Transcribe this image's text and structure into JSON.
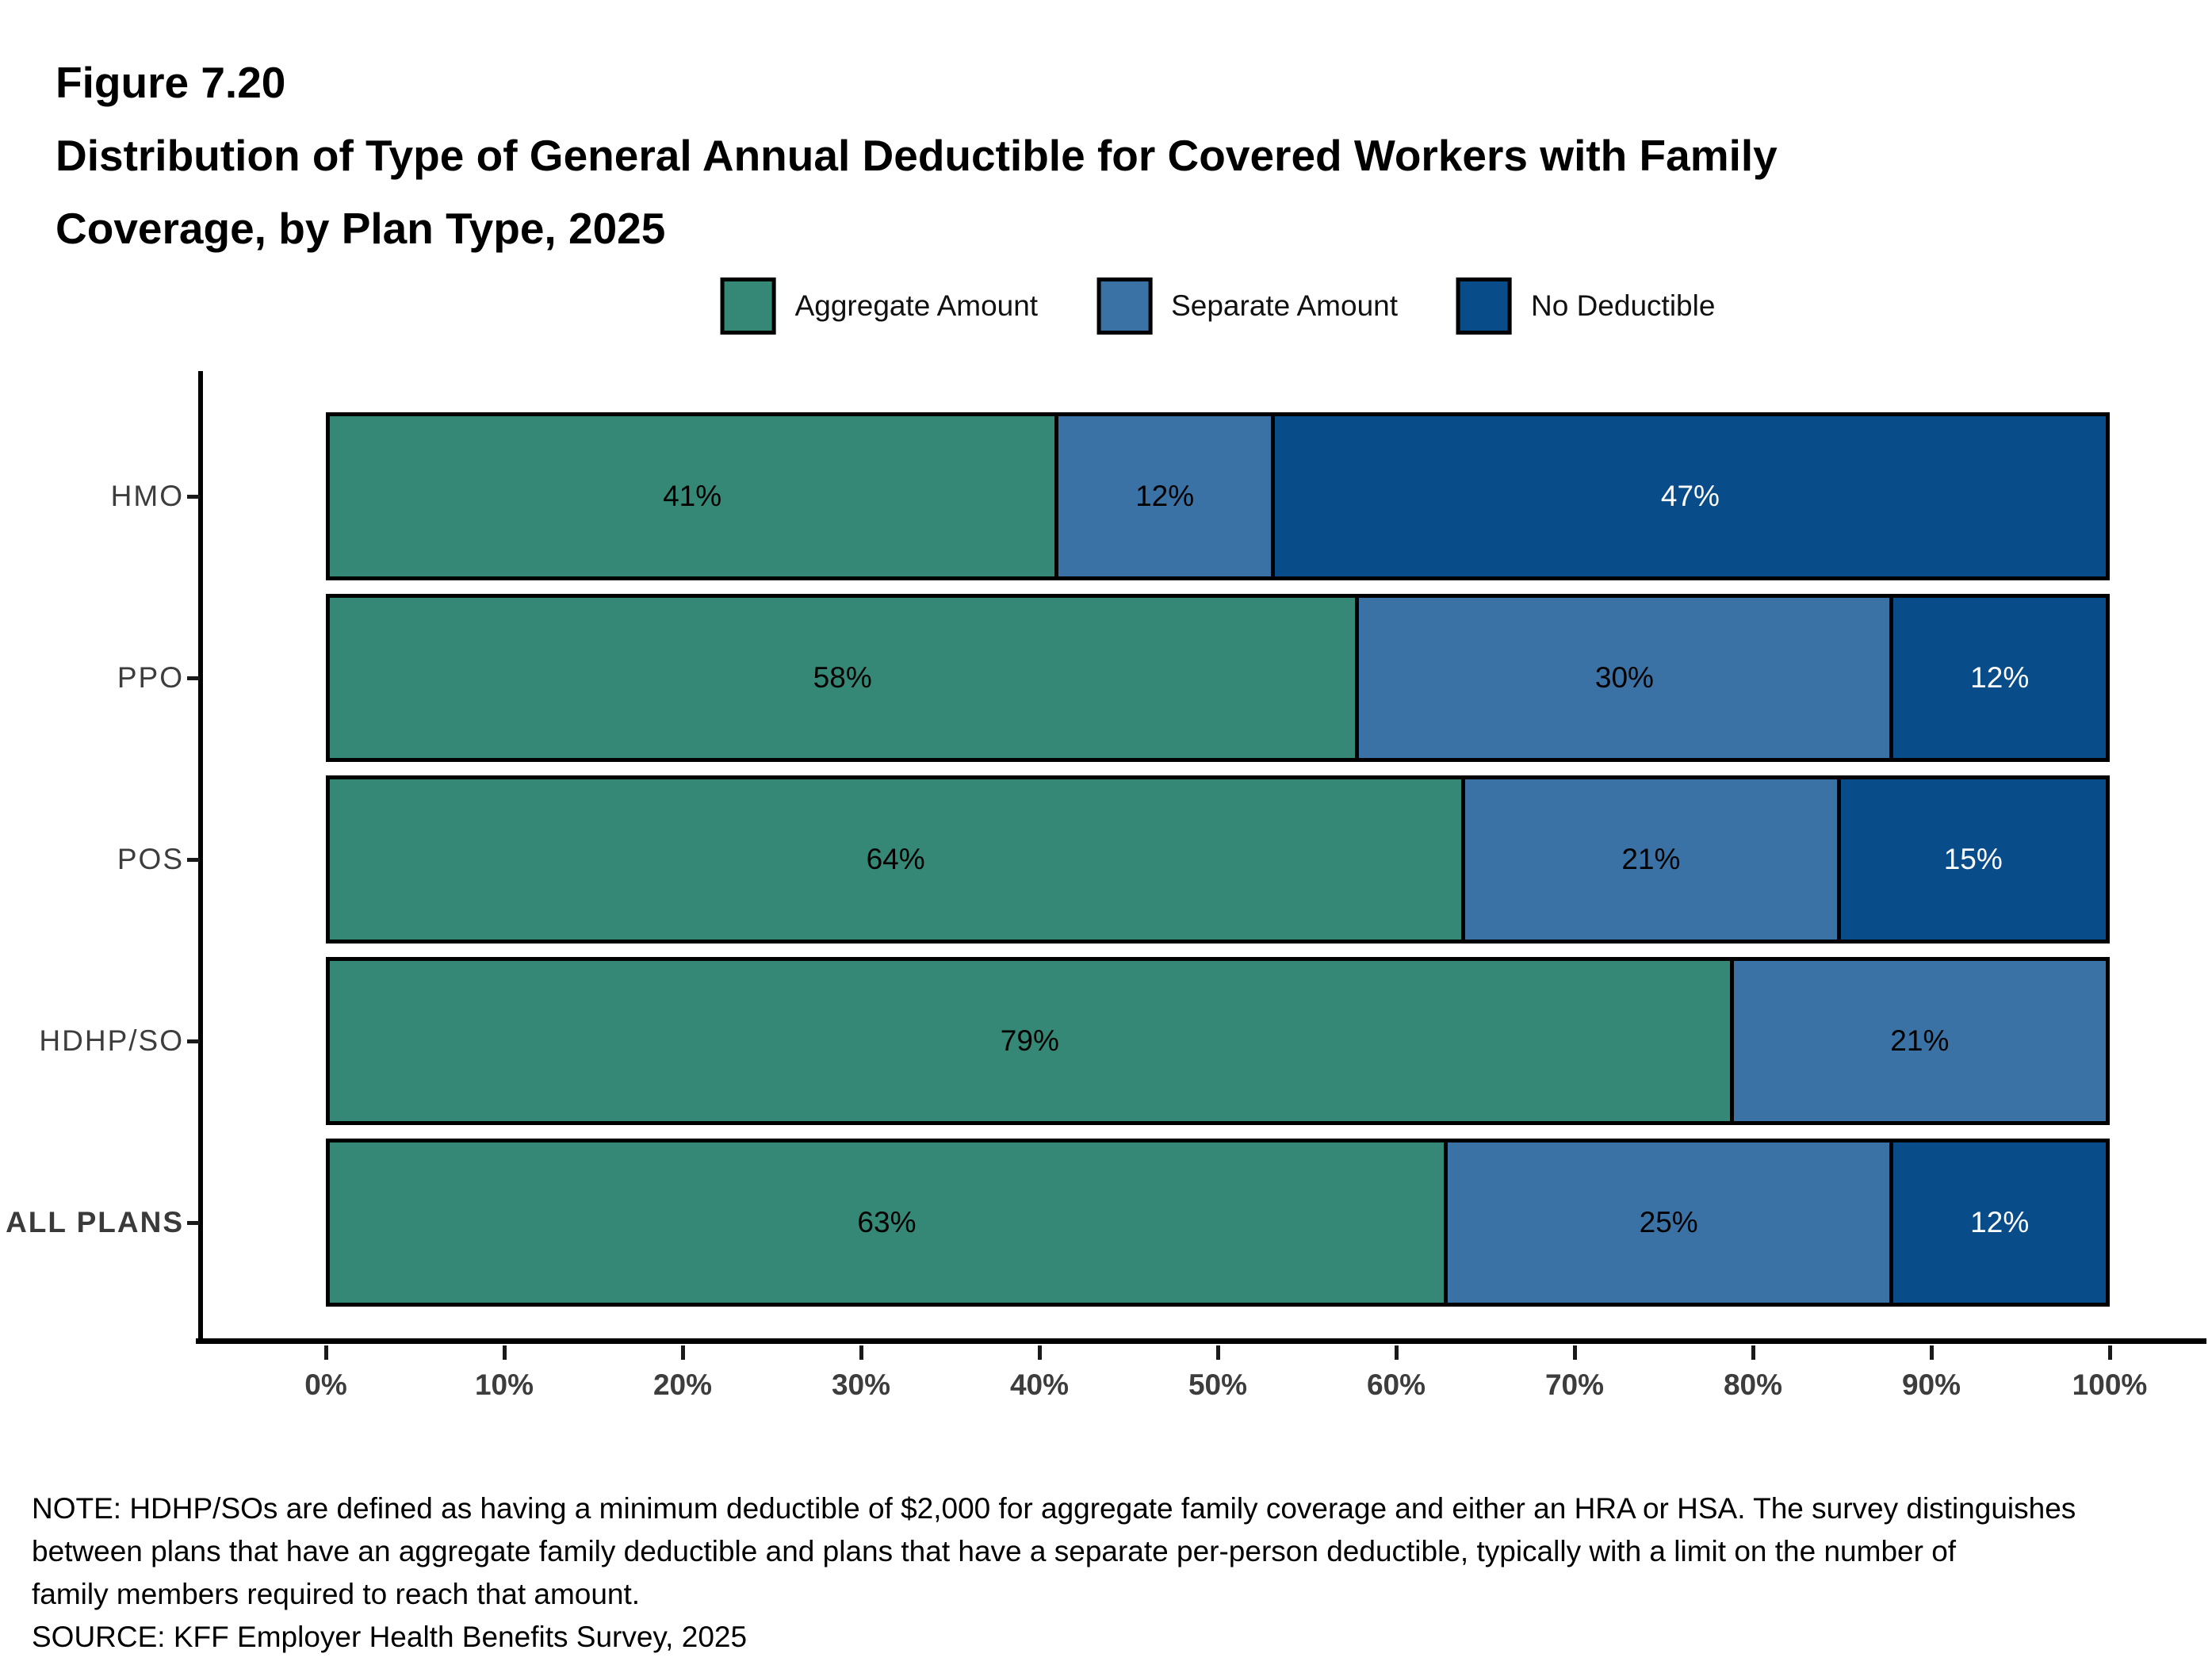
{
  "figure": {
    "label": "Figure 7.20",
    "title_line1": "Distribution of Type of General Annual Deductible for Covered Workers with Family",
    "title_line2": "Coverage, by Plan Type, 2025"
  },
  "legend": {
    "items": [
      {
        "label": "Aggregate Amount",
        "color": "#358875"
      },
      {
        "label": "Separate Amount",
        "color": "#3B72A6"
      },
      {
        "label": "No Deductible",
        "color": "#084C8A"
      }
    ]
  },
  "chart_data": {
    "type": "bar",
    "orientation": "horizontal-stacked",
    "title": "Distribution of Type of General Annual Deductible for Covered Workers with Family Coverage, by Plan Type, 2025",
    "categories": [
      "HMO",
      "PPO",
      "POS",
      "HDHP/SO",
      "ALL PLANS"
    ],
    "series": [
      {
        "name": "Aggregate Amount",
        "color": "#358875",
        "label_color": "#000000",
        "values": [
          41,
          58,
          64,
          79,
          63
        ]
      },
      {
        "name": "Separate Amount",
        "color": "#3B72A6",
        "label_color": "#000000",
        "values": [
          12,
          30,
          21,
          21,
          25
        ]
      },
      {
        "name": "No Deductible",
        "color": "#084C8A",
        "label_color": "#FFFFFF",
        "values": [
          47,
          12,
          15,
          0,
          12
        ]
      }
    ],
    "value_suffix": "%",
    "xlim": [
      0,
      100
    ],
    "x_tick_labels": [
      "0%",
      "10%",
      "20%",
      "30%",
      "40%",
      "50%",
      "60%",
      "70%",
      "80%",
      "90%",
      "100%"
    ],
    "bold_categories": [
      "ALL PLANS"
    ],
    "legend_position": "top",
    "grid": false
  },
  "notes": {
    "lines": [
      "NOTE: HDHP/SOs are defined as having a minimum deductible of $2,000 for aggregate family coverage and either an HRA or HSA. The survey distinguishes",
      "between plans that have an aggregate family deductible and plans that have a separate per-person deductible, typically with a limit on the number of",
      "family members required to reach that amount."
    ],
    "source": "SOURCE: KFF Employer Health Benefits Survey, 2025"
  }
}
